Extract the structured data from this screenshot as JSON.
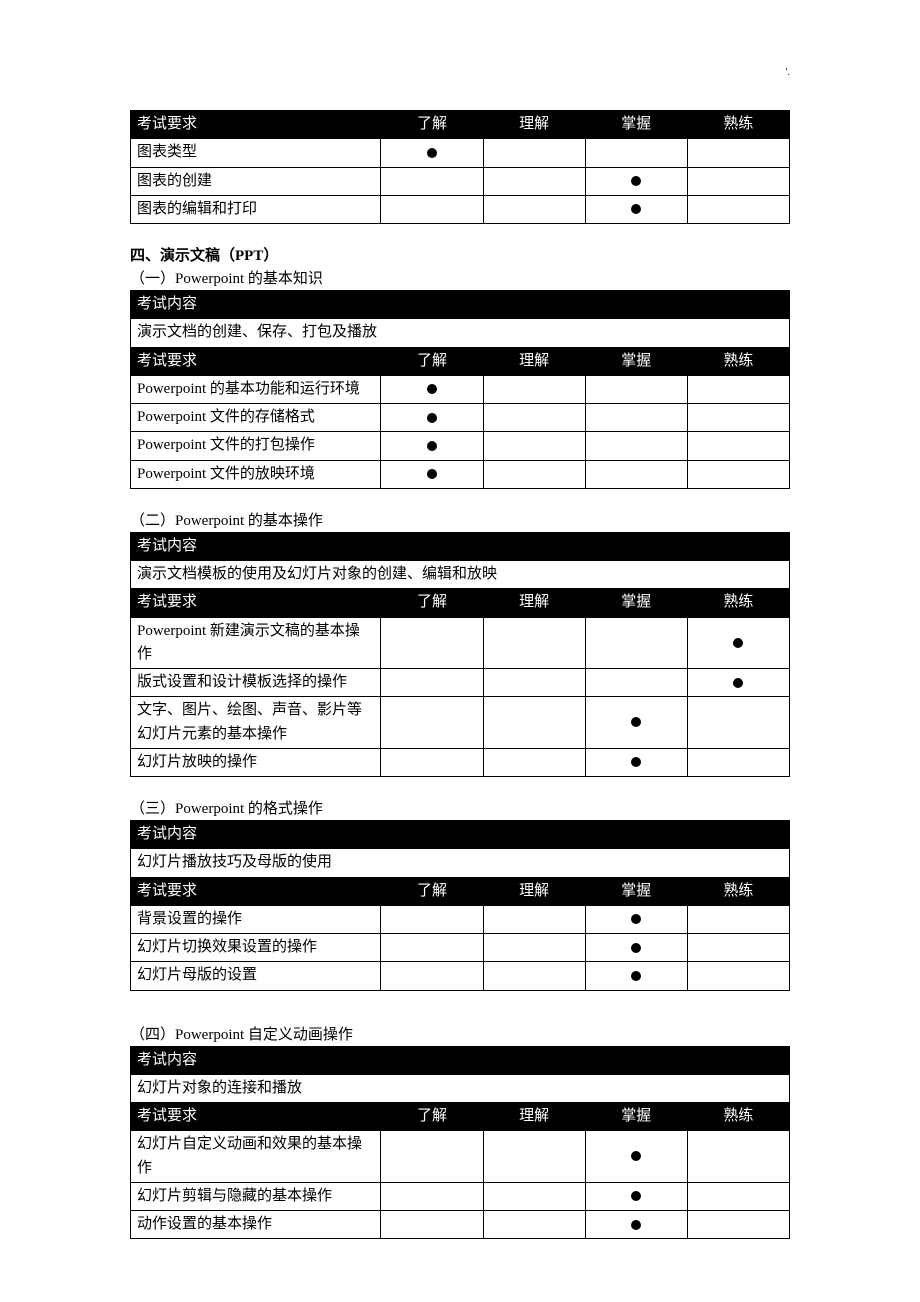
{
  "labels": {
    "exam_req": "考试要求",
    "exam_content": "考试内容",
    "c1": "了解",
    "c2": "理解",
    "c3": "掌握",
    "c4": "熟练"
  },
  "page_mark": "'.",
  "top_table": {
    "rows": [
      {
        "name": "图表类型",
        "mark": 1
      },
      {
        "name": "图表的创建",
        "mark": 3
      },
      {
        "name": "图表的编辑和打印",
        "mark": 3
      }
    ]
  },
  "section4": {
    "title": "四、演示文稿（PPT）",
    "sub1": {
      "heading": "（一）Powerpoint 的基本知识",
      "content": "演示文档的创建、保存、打包及播放",
      "rows": [
        {
          "name": "Powerpoint 的基本功能和运行环境",
          "mark": 1
        },
        {
          "name": "Powerpoint 文件的存储格式",
          "mark": 1
        },
        {
          "name": "Powerpoint 文件的打包操作",
          "mark": 1
        },
        {
          "name": "Powerpoint 文件的放映环境",
          "mark": 1
        }
      ]
    },
    "sub2": {
      "heading": "（二）Powerpoint 的基本操作",
      "content": "演示文档模板的使用及幻灯片对象的创建、编辑和放映",
      "rows": [
        {
          "name": "Powerpoint 新建演示文稿的基本操作",
          "mark": 4
        },
        {
          "name": "版式设置和设计模板选择的操作",
          "mark": 4
        },
        {
          "name": "文字、图片、绘图、声音、影片等幻灯片元素的基本操作",
          "mark": 3
        },
        {
          "name": "幻灯片放映的操作",
          "mark": 3
        }
      ]
    },
    "sub3": {
      "heading": "（三）Powerpoint 的格式操作",
      "content": "幻灯片播放技巧及母版的使用",
      "rows": [
        {
          "name": "背景设置的操作",
          "mark": 3
        },
        {
          "name": "幻灯片切换效果设置的操作",
          "mark": 3
        },
        {
          "name": "幻灯片母版的设置",
          "mark": 3
        }
      ]
    },
    "sub4": {
      "heading": "（四）Powerpoint 自定义动画操作",
      "content": "幻灯片对象的连接和播放",
      "rows": [
        {
          "name": "幻灯片自定义动画和效果的基本操作",
          "mark": 3
        },
        {
          "name": "幻灯片剪辑与隐藏的基本操作",
          "mark": 3
        },
        {
          "name": "动作设置的基本操作",
          "mark": 3
        }
      ]
    }
  }
}
